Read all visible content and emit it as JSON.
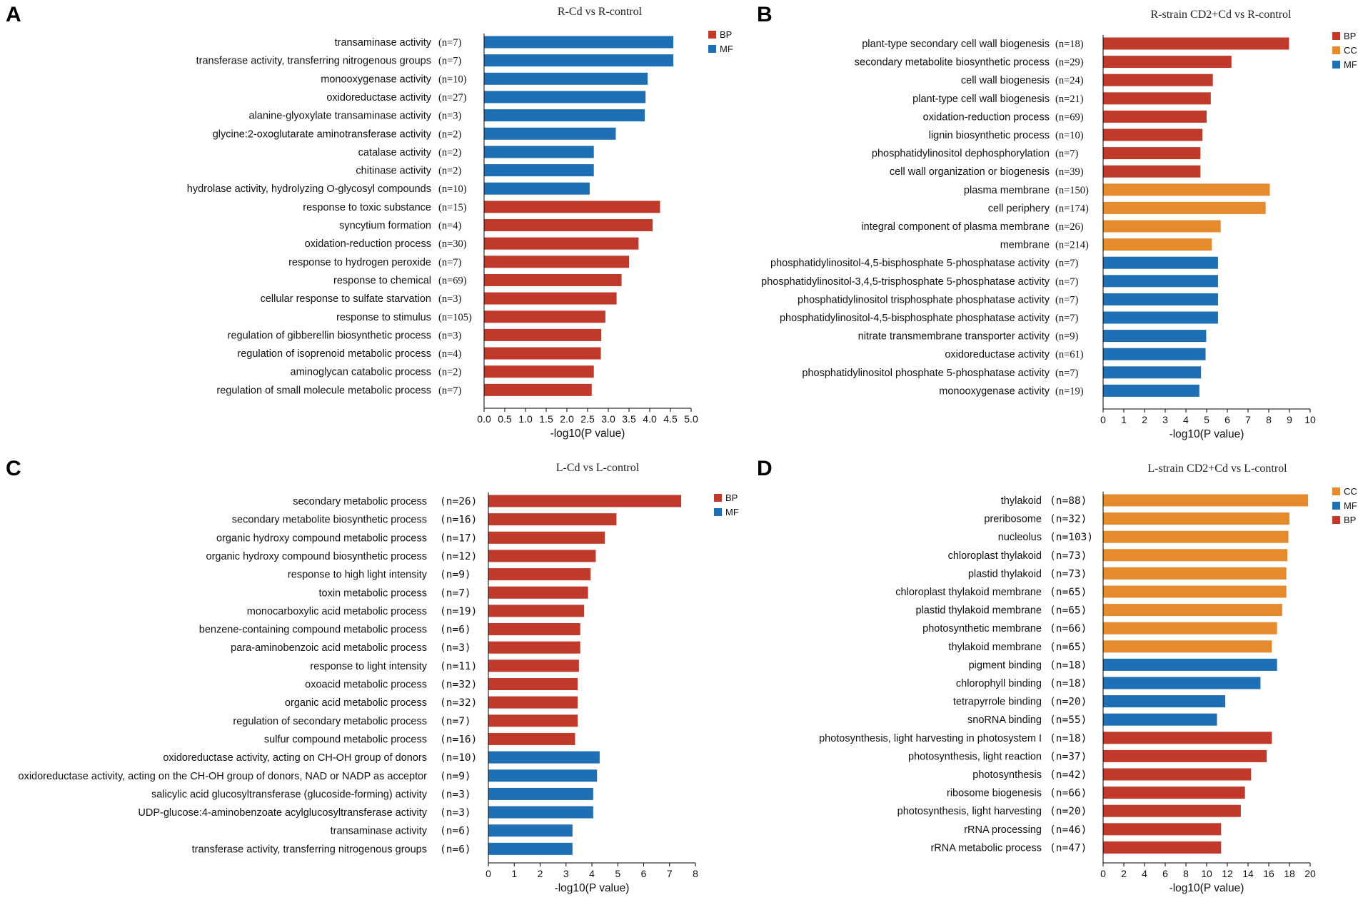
{
  "colors": {
    "BP": "#c0392b",
    "CC": "#e68a2e",
    "MF": "#1f6fb4"
  },
  "chart_data": [
    {
      "type": "bar",
      "orientation": "horizontal",
      "panel": "A",
      "title": "R-Cd vs R-control",
      "xlabel": "-log10(P value)",
      "xlim": [
        0,
        5.0
      ],
      "xticks": [
        "0.0",
        "0.5",
        "1.0",
        "1.5",
        "2.0",
        "2.5",
        "3.0",
        "3.5",
        "4.0",
        "4.5",
        "5.0"
      ],
      "legend": [
        "BP",
        "MF"
      ],
      "categories": [
        "transaminase activity",
        "transferase activity, transferring nitrogenous groups",
        "monooxygenase activity",
        "oxidoreductase activity",
        "alanine-glyoxylate transaminase activity",
        "glycine:2-oxoglutarate aminotransferase activity",
        "catalase activity",
        "chitinase activity",
        "hydrolase activity, hydrolyzing O-glycosyl compounds",
        "response to toxic substance",
        "syncytium formation",
        "oxidation-reduction process",
        "response to hydrogen peroxide",
        "response to chemical",
        "cellular response to sulfate starvation",
        "response to stimulus",
        "regulation of gibberellin biosynthetic process",
        "regulation of isoprenoid metabolic process",
        "aminoglycan catabolic process",
        "regulation of small molecule metabolic process"
      ],
      "counts": [
        "(n=7)",
        "(n=7)",
        "(n=10)",
        "(n=27)",
        "(n=3)",
        "(n=2)",
        "(n=2)",
        "(n=2)",
        "(n=10)",
        "(n=15)",
        "(n=4)",
        "(n=30)",
        "(n=7)",
        "(n=69)",
        "(n=3)",
        "(n=105)",
        "(n=3)",
        "(n=4)",
        "(n=2)",
        "(n=7)"
      ],
      "groups": [
        "MF",
        "MF",
        "MF",
        "MF",
        "MF",
        "MF",
        "MF",
        "MF",
        "MF",
        "BP",
        "BP",
        "BP",
        "BP",
        "BP",
        "BP",
        "BP",
        "BP",
        "BP",
        "BP",
        "BP"
      ],
      "values": [
        4.57,
        4.57,
        3.95,
        3.9,
        3.88,
        3.18,
        2.65,
        2.65,
        2.55,
        4.25,
        4.07,
        3.73,
        3.5,
        3.32,
        3.2,
        2.93,
        2.83,
        2.82,
        2.65,
        2.6
      ]
    },
    {
      "type": "bar",
      "orientation": "horizontal",
      "panel": "B",
      "title": "R-strain CD2+Cd vs R-control",
      "xlabel": "-log10(P value)",
      "xlim": [
        0,
        10
      ],
      "xticks": [
        "0",
        "1",
        "2",
        "3",
        "4",
        "5",
        "6",
        "7",
        "8",
        "9",
        "10"
      ],
      "legend": [
        "BP",
        "CC",
        "MF"
      ],
      "categories": [
        "plant-type secondary cell wall biogenesis",
        "secondary metabolite biosynthetic process",
        "cell wall biogenesis",
        "plant-type cell wall biogenesis",
        "oxidation-reduction process",
        "lignin biosynthetic process",
        "phosphatidylinositol dephosphorylation",
        "cell wall organization or biogenesis",
        "plasma membrane",
        "cell periphery",
        "integral component of plasma membrane",
        "membrane",
        "phosphatidylinositol-4,5-bisphosphate 5-phosphatase activity",
        "phosphatidylinositol-3,4,5-trisphosphate 5-phosphatase activity",
        "phosphatidylinositol trisphosphate phosphatase activity",
        "phosphatidylinositol-4,5-bisphosphate phosphatase activity",
        "nitrate transmembrane transporter activity",
        "oxidoreductase activity",
        "phosphatidylinositol phosphate 5-phosphatase activity",
        "monooxygenase activity"
      ],
      "counts": [
        "(n=18)",
        "(n=29)",
        "(n=24)",
        "(n=21)",
        "(n=69)",
        "(n=10)",
        "(n=7)",
        "(n=39)",
        "(n=150)",
        "(n=174)",
        "(n=26)",
        "(n=214)",
        "(n=7)",
        "(n=7)",
        "(n=7)",
        "(n=7)",
        "(n=9)",
        "(n=61)",
        "(n=7)",
        "(n=19)"
      ],
      "groups": [
        "BP",
        "BP",
        "BP",
        "BP",
        "BP",
        "BP",
        "BP",
        "BP",
        "CC",
        "CC",
        "CC",
        "CC",
        "MF",
        "MF",
        "MF",
        "MF",
        "MF",
        "MF",
        "MF",
        "MF"
      ],
      "values": [
        8.98,
        6.2,
        5.3,
        5.2,
        5.0,
        4.8,
        4.7,
        4.7,
        8.05,
        7.85,
        5.68,
        5.25,
        5.55,
        5.55,
        5.55,
        5.55,
        4.98,
        4.95,
        4.73,
        4.65
      ]
    },
    {
      "type": "bar",
      "orientation": "horizontal",
      "panel": "C",
      "title": "L-Cd vs L-control",
      "xlabel": "-log10(P value)",
      "xlim": [
        0,
        8
      ],
      "xticks": [
        "0",
        "1",
        "2",
        "3",
        "4",
        "5",
        "6",
        "7",
        "8"
      ],
      "legend": [
        "BP",
        "MF"
      ],
      "categories": [
        "secondary metabolic process",
        "secondary metabolite biosynthetic process",
        "organic hydroxy compound metabolic process",
        "organic hydroxy compound biosynthetic process",
        "response to high light intensity",
        "toxin metabolic process",
        "monocarboxylic acid metabolic process",
        "benzene-containing compound metabolic process",
        "para-aminobenzoic acid metabolic process",
        "response to light intensity",
        "oxoacid metabolic process",
        "organic acid metabolic process",
        "regulation of secondary metabolic process",
        "sulfur compound metabolic process",
        "oxidoreductase activity, acting on CH-OH group of donors",
        "oxidoreductase activity, acting on the CH-OH group of donors, NAD or NADP as acceptor",
        "salicylic acid glucosyltransferase (glucoside-forming) activity",
        "UDP-glucose:4-aminobenzoate acylglucosyltransferase activity",
        "transaminase activity",
        "transferase activity, transferring nitrogenous groups"
      ],
      "counts": [
        "(n=26)",
        "(n=16)",
        "(n=17)",
        "(n=12)",
        "(n=9)",
        "(n=7)",
        "(n=19)",
        "(n=6)",
        "(n=3)",
        "(n=11)",
        "(n=32)",
        "(n=32)",
        "(n=7)",
        "(n=16)",
        "(n=10)",
        "(n=9)",
        "(n=3)",
        "(n=3)",
        "(n=6)",
        "(n=6)"
      ],
      "groups": [
        "BP",
        "BP",
        "BP",
        "BP",
        "BP",
        "BP",
        "BP",
        "BP",
        "BP",
        "BP",
        "BP",
        "BP",
        "BP",
        "BP",
        "MF",
        "MF",
        "MF",
        "MF",
        "MF",
        "MF"
      ],
      "values": [
        7.45,
        4.95,
        4.5,
        4.15,
        3.95,
        3.85,
        3.7,
        3.55,
        3.55,
        3.5,
        3.45,
        3.45,
        3.45,
        3.35,
        4.3,
        4.2,
        4.05,
        4.05,
        3.25,
        3.25
      ]
    },
    {
      "type": "bar",
      "orientation": "horizontal",
      "panel": "D",
      "title": "L-strain CD2+Cd vs L-control",
      "xlabel": "-log10(P value)",
      "xlim": [
        0,
        20
      ],
      "xticks": [
        "0",
        "2",
        "4",
        "6",
        "8",
        "10",
        "12",
        "14",
        "16",
        "18",
        "20"
      ],
      "legend": [
        "CC",
        "MF",
        "BP"
      ],
      "categories": [
        "thylakoid",
        "preribosome",
        "nucleolus",
        "chloroplast thylakoid",
        "plastid thylakoid",
        "chloroplast thylakoid membrane",
        "plastid thylakoid membrane",
        "photosynthetic membrane",
        "thylakoid membrane",
        "pigment binding",
        "chlorophyll binding",
        "tetrapyrrole binding",
        "snoRNA binding",
        "photosynthesis, light harvesting in photosystem I",
        "photosynthesis, light reaction",
        "photosynthesis",
        "ribosome biogenesis",
        "photosynthesis, light harvesting",
        "rRNA processing",
        "rRNA metabolic process"
      ],
      "counts": [
        "(n=88)",
        "(n=32)",
        "(n=103)",
        "(n=73)",
        "(n=73)",
        "(n=65)",
        "(n=65)",
        "(n=66)",
        "(n=65)",
        "(n=18)",
        "(n=18)",
        "(n=20)",
        "(n=55)",
        "(n=18)",
        "(n=37)",
        "(n=42)",
        "(n=66)",
        "(n=20)",
        "(n=46)",
        "(n=47)"
      ],
      "groups": [
        "CC",
        "CC",
        "CC",
        "CC",
        "CC",
        "CC",
        "CC",
        "CC",
        "CC",
        "MF",
        "MF",
        "MF",
        "MF",
        "BP",
        "BP",
        "BP",
        "BP",
        "BP",
        "BP",
        "BP"
      ],
      "values": [
        19.8,
        18.0,
        17.9,
        17.8,
        17.7,
        17.7,
        17.3,
        16.8,
        16.3,
        16.8,
        15.2,
        11.8,
        11.0,
        16.3,
        15.8,
        14.3,
        13.7,
        13.3,
        11.4,
        11.4
      ]
    }
  ]
}
